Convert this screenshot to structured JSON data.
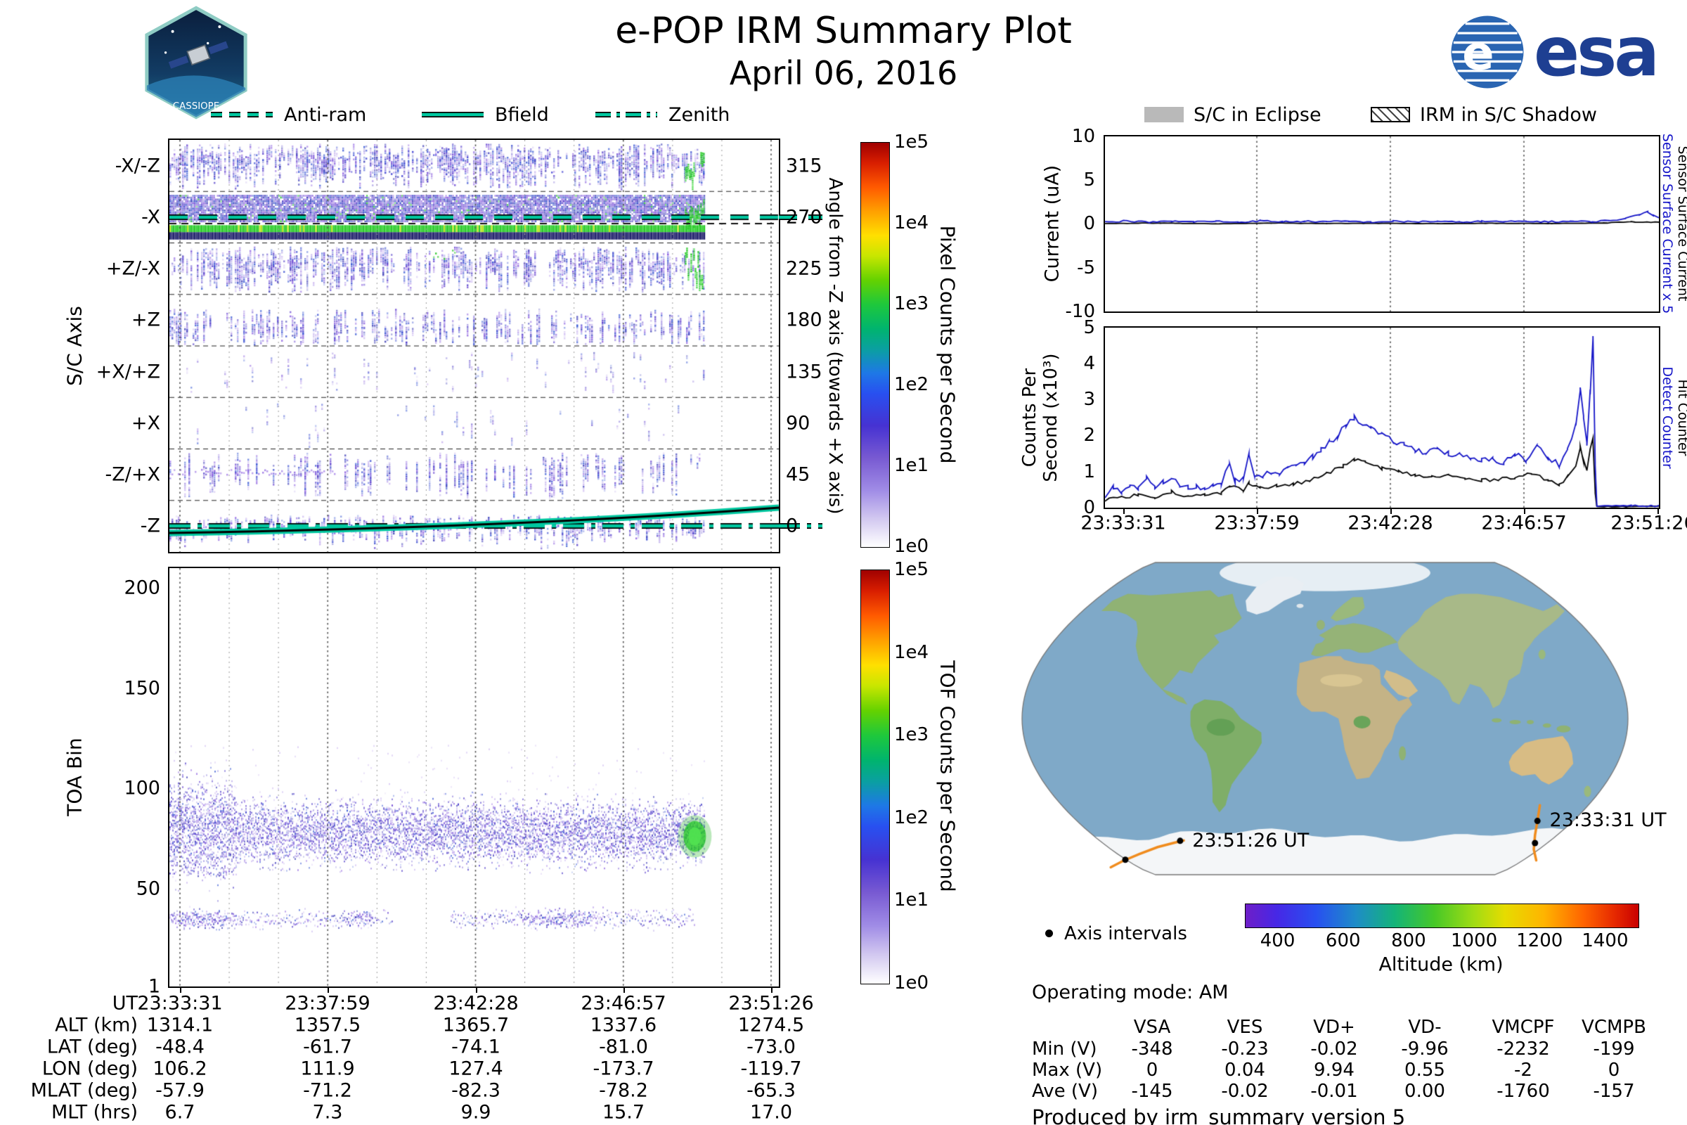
{
  "header": {
    "title": "e-POP IRM Summary Plot",
    "date": "April 06, 2016",
    "esa_wordmark": "esa",
    "mission_patch": "CASSIOPE"
  },
  "overlay_legend": {
    "color": "#00c8a0",
    "items": [
      {
        "label": "Anti-ram",
        "style": "dashed"
      },
      {
        "label": "Bfield",
        "style": "solid"
      },
      {
        "label": "Zenith",
        "style": "dashdot"
      }
    ]
  },
  "eclipse_legend": {
    "items": [
      {
        "label": "S/C in Eclipse",
        "style": "filled-gray"
      },
      {
        "label": "IRM in S/C Shadow",
        "style": "hatched"
      }
    ]
  },
  "panel_sc_axis": {
    "ylabel": "S/C Axis",
    "yticks": [
      "-X/-Z",
      "-X",
      "+Z/-X",
      "+Z",
      "+X/+Z",
      "+X",
      "-Z/+X",
      "-Z"
    ],
    "right_label": "Angle from -Z axis (towards +X axis)",
    "right_ticks": [
      "315",
      "270",
      "225",
      "180",
      "135",
      "90",
      "45",
      "0"
    ],
    "colorbar_label": "Pixel Counts per Second",
    "colorbar_ticks": [
      "1e5",
      "1e4",
      "1e3",
      "1e2",
      "1e1",
      "1e0"
    ]
  },
  "panel_toa": {
    "ylabel": "TOA Bin",
    "yticks": [
      "200",
      "150",
      "100",
      "50",
      "1"
    ],
    "colorbar_label": "TOF Counts per Second",
    "colorbar_ticks": [
      "1e5",
      "1e4",
      "1e3",
      "1e2",
      "1e1",
      "1e0"
    ]
  },
  "time_axis": {
    "ticks": [
      "23:33:31",
      "23:37:59",
      "23:42:28",
      "23:46:57",
      "23:51:26"
    ]
  },
  "ephemeris_table": {
    "row_labels": [
      "UT",
      "ALT (km)",
      "LAT (deg)",
      "LON (deg)",
      "MLAT (deg)",
      "MLT (hrs)"
    ],
    "rows": [
      [
        "23:33:31",
        "23:37:59",
        "23:42:28",
        "23:46:57",
        "23:51:26"
      ],
      [
        "1314.1",
        "1357.5",
        "1365.7",
        "1337.6",
        "1274.5"
      ],
      [
        "-48.4",
        "-61.7",
        "-74.1",
        "-81.0",
        "-73.0"
      ],
      [
        "106.2",
        "111.9",
        "127.4",
        "-173.7",
        "-119.7"
      ],
      [
        "-57.9",
        "-71.2",
        "-82.3",
        "-78.2",
        "-65.3"
      ],
      [
        "6.7",
        "7.3",
        "9.9",
        "15.7",
        "17.0"
      ]
    ]
  },
  "panel_current": {
    "ylabel": "Current (uA)",
    "yticks": [
      "10",
      "5",
      "0",
      "-5",
      "-10"
    ],
    "right_labels": [
      {
        "text": "Sensor Surface Current x 5",
        "color": "#1515c8"
      },
      {
        "text": "Sensor Surface Current",
        "color": "#000000"
      }
    ]
  },
  "panel_counts": {
    "ylabel_lines": [
      "Counts Per",
      "Second (x10³)"
    ],
    "yticks": [
      "5",
      "4",
      "3",
      "2",
      "1",
      "0"
    ],
    "right_labels": [
      {
        "text": "Detect Counter",
        "color": "#1515c8"
      },
      {
        "text": "Hit Counter",
        "color": "#000000"
      }
    ]
  },
  "map": {
    "annotations": [
      {
        "label": "23:33:31 UT",
        "fx": 0.869,
        "fy": 0.823
      },
      {
        "label": "23:51:26 UT",
        "fx": 0.282,
        "fy": 0.885
      }
    ],
    "axis_intervals_label": "Axis intervals",
    "operating_mode": "Operating mode: AM",
    "alt_label": "Altitude (km)",
    "alt_ticks": [
      "400",
      "600",
      "800",
      "1000",
      "1200",
      "1400"
    ]
  },
  "voltage_table": {
    "col_headers": [
      "VSA",
      "VES",
      "VD+",
      "VD-",
      "VMCPF",
      "VCMPB"
    ],
    "row_labels": [
      "Min (V)",
      "Max (V)",
      "Ave (V)"
    ],
    "rows": [
      [
        "-348",
        "-0.23",
        "-0.02",
        "-9.96",
        "-2232",
        "-199"
      ],
      [
        "0",
        "0.04",
        "9.94",
        "0.55",
        "-2",
        "0"
      ],
      [
        "-145",
        "-0.02",
        "-0.01",
        "0.00",
        "-1760",
        "-157"
      ]
    ]
  },
  "footer": {
    "text": "Produced by irm_summary version 5"
  },
  "chart_data": [
    {
      "id": "sc_axis_spectrogram",
      "type": "heatmap",
      "ylabel": "S/C Axis",
      "y_categories": [
        "-X/-Z",
        "-X",
        "+Z/-X",
        "+Z",
        "+X/+Z",
        "+X",
        "-Z/+X",
        "-Z"
      ],
      "right_axis": {
        "label": "Angle from -Z axis (towards +X axis)",
        "ticks": [
          315,
          270,
          225,
          180,
          135,
          90,
          45,
          0
        ]
      },
      "x_range": [
        "23:33:31",
        "23:51:26"
      ],
      "data_end_fraction": 0.878,
      "colorbar": {
        "label": "Pixel Counts per Second",
        "scale": "log",
        "ticks": [
          "1e5",
          "1e4",
          "1e3",
          "1e2",
          "1e1",
          "1e0"
        ]
      },
      "bands": [
        {
          "axis": "-X/-Z",
          "angle": 315,
          "density": 0.8,
          "intensity": "moderate"
        },
        {
          "axis": "-X",
          "angle": 270,
          "density": 1.0,
          "intensity": "high",
          "features": [
            "dense blue-purple",
            "bright green stripe ~1e3",
            "dark navy stripe",
            "anti-ram dashed overlay at 270 deg"
          ]
        },
        {
          "axis": "+Z/-X",
          "angle": 225,
          "density": 0.75,
          "intensity": "moderate",
          "features": [
            "green patch near 23:42"
          ]
        },
        {
          "axis": "+Z",
          "angle": 180,
          "density": 0.5,
          "intensity": "low"
        },
        {
          "axis": "+X/+Z",
          "angle": 135,
          "density": 0.18,
          "intensity": "sparse"
        },
        {
          "axis": "+X",
          "angle": 90,
          "density": 0.15,
          "intensity": "sparse"
        },
        {
          "axis": "-Z/+X",
          "angle": 45,
          "density": 0.3,
          "intensity": "sparse",
          "features": [
            "horizontal purple streak left quarter"
          ]
        },
        {
          "axis": "-Z",
          "angle": 0,
          "density": 0.7,
          "intensity": "moderate",
          "features": [
            "Bfield solid line rising 0 to ~30 deg",
            "Zenith dash-dot overlay at 0 deg"
          ]
        }
      ]
    },
    {
      "id": "toa_spectrogram",
      "type": "heatmap",
      "ylabel": "TOA Bin",
      "ylim": [
        1,
        210
      ],
      "yticks": [
        1,
        50,
        100,
        150,
        200
      ],
      "main_band_center_toa": 78,
      "secondary_band_center_toa": 35,
      "green_blob": {
        "x_fraction": 0.862,
        "toa": 76
      },
      "data_end_fraction": 0.878,
      "colorbar": {
        "label": "TOF Counts per Second",
        "scale": "log",
        "ticks": [
          "1e5",
          "1e4",
          "1e3",
          "1e2",
          "1e1",
          "1e0"
        ]
      }
    },
    {
      "id": "sensor_current",
      "type": "line",
      "ylabel": "Current (uA)",
      "ylim": [
        -10,
        10
      ],
      "yticks": [
        10,
        5,
        0,
        -5,
        -10
      ],
      "series": [
        {
          "name": "Sensor Surface Current x 5",
          "color": "#1515c8",
          "points": [
            [
              0,
              0.25
            ],
            [
              0.04,
              0.35
            ],
            [
              0.08,
              0.2
            ],
            [
              0.12,
              0.3
            ],
            [
              0.16,
              0.25
            ],
            [
              0.2,
              0.3
            ],
            [
              0.24,
              0.2
            ],
            [
              0.28,
              0.35
            ],
            [
              0.32,
              0.25
            ],
            [
              0.36,
              0.3
            ],
            [
              0.4,
              0.25
            ],
            [
              0.44,
              0.3
            ],
            [
              0.48,
              0.2
            ],
            [
              0.52,
              0.3
            ],
            [
              0.56,
              0.25
            ],
            [
              0.6,
              0.3
            ],
            [
              0.64,
              0.2
            ],
            [
              0.68,
              0.3
            ],
            [
              0.72,
              0.25
            ],
            [
              0.76,
              0.3
            ],
            [
              0.8,
              0.25
            ],
            [
              0.84,
              0.3
            ],
            [
              0.88,
              0.25
            ],
            [
              0.91,
              0.4
            ],
            [
              0.94,
              0.6
            ],
            [
              0.965,
              1.1
            ],
            [
              0.98,
              1.4
            ],
            [
              0.99,
              1.0
            ],
            [
              1,
              0.8
            ]
          ]
        },
        {
          "name": "Sensor Surface Current",
          "color": "#000000",
          "points": [
            [
              0,
              0.05
            ],
            [
              0.1,
              0.1
            ],
            [
              0.2,
              0.02
            ],
            [
              0.3,
              0.1
            ],
            [
              0.4,
              0.05
            ],
            [
              0.5,
              0.08
            ],
            [
              0.6,
              0.03
            ],
            [
              0.7,
              0.08
            ],
            [
              0.8,
              0.05
            ],
            [
              0.9,
              0.1
            ],
            [
              0.95,
              0.25
            ],
            [
              1,
              0.2
            ]
          ]
        }
      ]
    },
    {
      "id": "counters",
      "type": "line",
      "ylabel": "Counts Per Second (x10³)",
      "ylim": [
        0,
        5
      ],
      "yticks": [
        0,
        1,
        2,
        3,
        4,
        5
      ],
      "x_ticks": [
        "23:33:31",
        "23:37:59",
        "23:42:28",
        "23:46:57",
        "23:51:26"
      ],
      "series": [
        {
          "name": "Detect Counter",
          "color": "#1515c8",
          "points": [
            [
              0,
              0.35
            ],
            [
              0.015,
              0.55
            ],
            [
              0.03,
              0.45
            ],
            [
              0.045,
              0.6
            ],
            [
              0.06,
              0.5
            ],
            [
              0.075,
              0.8
            ],
            [
              0.09,
              0.6
            ],
            [
              0.105,
              0.7
            ],
            [
              0.12,
              0.85
            ],
            [
              0.135,
              0.6
            ],
            [
              0.15,
              0.55
            ],
            [
              0.165,
              0.6
            ],
            [
              0.18,
              0.5
            ],
            [
              0.195,
              0.65
            ],
            [
              0.21,
              0.7
            ],
            [
              0.225,
              1.3
            ],
            [
              0.235,
              0.75
            ],
            [
              0.25,
              0.85
            ],
            [
              0.26,
              1.45
            ],
            [
              0.27,
              0.8
            ],
            [
              0.285,
              0.9
            ],
            [
              0.3,
              1.0
            ],
            [
              0.315,
              0.95
            ],
            [
              0.33,
              1.1
            ],
            [
              0.345,
              1.15
            ],
            [
              0.36,
              1.25
            ],
            [
              0.375,
              1.4
            ],
            [
              0.39,
              1.6
            ],
            [
              0.405,
              1.8
            ],
            [
              0.42,
              2.0
            ],
            [
              0.435,
              2.3
            ],
            [
              0.45,
              2.5
            ],
            [
              0.465,
              2.35
            ],
            [
              0.48,
              2.2
            ],
            [
              0.5,
              2.0
            ],
            [
              0.52,
              1.85
            ],
            [
              0.54,
              1.75
            ],
            [
              0.56,
              1.6
            ],
            [
              0.58,
              1.55
            ],
            [
              0.6,
              1.65
            ],
            [
              0.62,
              1.5
            ],
            [
              0.64,
              1.45
            ],
            [
              0.66,
              1.35
            ],
            [
              0.68,
              1.3
            ],
            [
              0.7,
              1.35
            ],
            [
              0.72,
              1.25
            ],
            [
              0.74,
              1.5
            ],
            [
              0.76,
              1.3
            ],
            [
              0.78,
              1.7
            ],
            [
              0.8,
              1.4
            ],
            [
              0.82,
              1.2
            ],
            [
              0.835,
              1.6
            ],
            [
              0.85,
              2.3
            ],
            [
              0.858,
              3.3
            ],
            [
              0.864,
              2.5
            ],
            [
              0.87,
              1.8
            ],
            [
              0.876,
              3.2
            ],
            [
              0.881,
              4.75
            ],
            [
              0.885,
              1.2
            ],
            [
              0.888,
              0.05
            ],
            [
              0.95,
              0.05
            ],
            [
              1,
              0.05
            ]
          ]
        },
        {
          "name": "Hit Counter",
          "color": "#000000",
          "points": [
            [
              0,
              0.2
            ],
            [
              0.03,
              0.3
            ],
            [
              0.06,
              0.35
            ],
            [
              0.09,
              0.3
            ],
            [
              0.12,
              0.45
            ],
            [
              0.15,
              0.3
            ],
            [
              0.18,
              0.35
            ],
            [
              0.21,
              0.4
            ],
            [
              0.225,
              0.6
            ],
            [
              0.25,
              0.5
            ],
            [
              0.26,
              0.7
            ],
            [
              0.28,
              0.55
            ],
            [
              0.31,
              0.6
            ],
            [
              0.34,
              0.65
            ],
            [
              0.37,
              0.75
            ],
            [
              0.4,
              0.95
            ],
            [
              0.43,
              1.15
            ],
            [
              0.45,
              1.35
            ],
            [
              0.47,
              1.25
            ],
            [
              0.5,
              1.1
            ],
            [
              0.53,
              1.0
            ],
            [
              0.56,
              0.9
            ],
            [
              0.59,
              0.85
            ],
            [
              0.62,
              0.9
            ],
            [
              0.65,
              0.8
            ],
            [
              0.68,
              0.75
            ],
            [
              0.71,
              0.8
            ],
            [
              0.74,
              0.85
            ],
            [
              0.77,
              0.95
            ],
            [
              0.8,
              0.75
            ],
            [
              0.82,
              0.65
            ],
            [
              0.835,
              0.85
            ],
            [
              0.85,
              1.2
            ],
            [
              0.858,
              1.7
            ],
            [
              0.864,
              1.3
            ],
            [
              0.87,
              1.0
            ],
            [
              0.876,
              1.6
            ],
            [
              0.881,
              1.9
            ],
            [
              0.885,
              0.4
            ],
            [
              0.888,
              0.03
            ],
            [
              1,
              0.03
            ]
          ]
        }
      ]
    },
    {
      "id": "ground_track",
      "type": "scatter",
      "annotations": [
        {
          "label": "23:33:31 UT",
          "fx": 0.869,
          "fy": 0.823
        },
        {
          "label": "23:51:26 UT",
          "fx": 0.282,
          "fy": 0.885
        }
      ],
      "track_segments": [
        {
          "points": [
            [
              0.853,
              0.775
            ],
            [
              0.849,
              0.825
            ],
            [
              0.845,
              0.87
            ],
            [
              0.843,
              0.915
            ],
            [
              0.847,
              0.95
            ]
          ],
          "dots": [
            [
              0.849,
              0.825
            ],
            [
              0.845,
              0.895
            ]
          ]
        },
        {
          "points": [
            [
              0.148,
              0.972
            ],
            [
              0.168,
              0.952
            ],
            [
              0.195,
              0.93
            ],
            [
              0.225,
              0.908
            ],
            [
              0.255,
              0.893
            ],
            [
              0.268,
              0.887
            ]
          ],
          "dots": [
            [
              0.172,
              0.948
            ],
            [
              0.262,
              0.888
            ]
          ]
        }
      ],
      "track_color": "#f08c1e",
      "altitude_colorbar": {
        "label": "Altitude (km)",
        "ticks": [
          400,
          600,
          800,
          1000,
          1200,
          1400
        ],
        "range": [
          300,
          1500
        ]
      }
    }
  ]
}
